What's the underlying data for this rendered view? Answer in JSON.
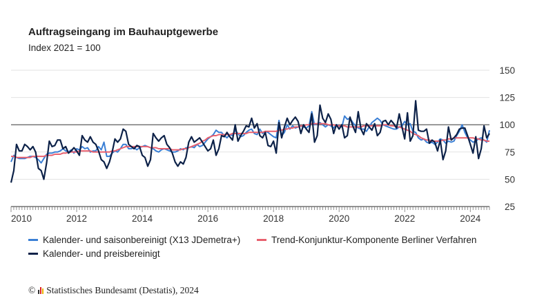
{
  "chart_data": {
    "type": "line",
    "title": "Auftragseingang im Bauhauptgewerbe",
    "subtitle": "Index 2021 = 100",
    "x_start": "2010-01",
    "x_end": "2024-08",
    "x_frequency": "monthly",
    "xtick_labels": [
      "2010",
      "2012",
      "2014",
      "2016",
      "2018",
      "2020",
      "2022",
      "2024"
    ],
    "ytick_labels": [
      "25",
      "50",
      "75",
      "100",
      "125",
      "150"
    ],
    "ylim": [
      25,
      150
    ],
    "reference_line": 100,
    "grid": true,
    "legend_position": "bottom",
    "series": [
      {
        "name": "Kalender- und saisonbereinigt (X13 JDemetra+)",
        "color": "#3a7fd5",
        "values": [
          66,
          72,
          70,
          69,
          69,
          69,
          70,
          71,
          71,
          70,
          68,
          65,
          69,
          73,
          74,
          74,
          75,
          75,
          76,
          78,
          76,
          75,
          77,
          74,
          78,
          77,
          80,
          78,
          79,
          75,
          76,
          76,
          80,
          77,
          84,
          71,
          71,
          74,
          76,
          75,
          78,
          82,
          82,
          78,
          78,
          79,
          77,
          79,
          80,
          81,
          80,
          79,
          78,
          76,
          75,
          77,
          78,
          77,
          76,
          75,
          75,
          76,
          78,
          77,
          79,
          79,
          80,
          79,
          82,
          80,
          81,
          84,
          87,
          89,
          91,
          95,
          93,
          93,
          90,
          88,
          91,
          90,
          95,
          92,
          89,
          90,
          93,
          95,
          96,
          92,
          91,
          96,
          92,
          94,
          93,
          91,
          89,
          88,
          104,
          90,
          93,
          100,
          96,
          99,
          97,
          98,
          99,
          98,
          97,
          99,
          112,
          100,
          101,
          102,
          100,
          98,
          100,
          99,
          97,
          100,
          99,
          98,
          108,
          105,
          106,
          102,
          99,
          97,
          96,
          96,
          94,
          98,
          102,
          104,
          106,
          104,
          100,
          99,
          98,
          97,
          96,
          96,
          98,
          99,
          103,
          100,
          101,
          94,
          93,
          88,
          86,
          87,
          84,
          83,
          84,
          82,
          84,
          87,
          86,
          83,
          85,
          84,
          85,
          90,
          94,
          100,
          93,
          88,
          86,
          84,
          85,
          87,
          88,
          86,
          84,
          95
        ]
      },
      {
        "name": "Trend-Konjunktur-Komponente Berliner Verfahren",
        "color": "#e8606e",
        "values": [
          71,
          71,
          70,
          70,
          70,
          70,
          70,
          70,
          71,
          71,
          71,
          71,
          71,
          72,
          72,
          72,
          73,
          73,
          73,
          74,
          74,
          75,
          75,
          75,
          75,
          76,
          76,
          76,
          76,
          76,
          75,
          75,
          75,
          75,
          75,
          75,
          75,
          76,
          76,
          77,
          78,
          79,
          80,
          80,
          80,
          80,
          80,
          80,
          80,
          80,
          80,
          79,
          79,
          79,
          78,
          78,
          78,
          78,
          78,
          77,
          77,
          77,
          77,
          78,
          78,
          79,
          80,
          81,
          82,
          83,
          85,
          86,
          88,
          89,
          90,
          90,
          91,
          91,
          91,
          91,
          91,
          92,
          92,
          92,
          92,
          92,
          92,
          93,
          93,
          93,
          93,
          93,
          93,
          94,
          94,
          94,
          94,
          94,
          95,
          95,
          96,
          96,
          97,
          97,
          98,
          98,
          99,
          99,
          100,
          100,
          101,
          101,
          101,
          101,
          101,
          101,
          100,
          100,
          100,
          99,
          99,
          99,
          99,
          98,
          98,
          98,
          98,
          98,
          98,
          99,
          99,
          99,
          99,
          99,
          99,
          99,
          100,
          100,
          100,
          99,
          99,
          98,
          98,
          97,
          96,
          95,
          94,
          92,
          91,
          90,
          88,
          87,
          86,
          86,
          85,
          85,
          85,
          85,
          86,
          86,
          87,
          87,
          88,
          88,
          88,
          88,
          88,
          88,
          88,
          88,
          87,
          87,
          86,
          86,
          85,
          85
        ]
      },
      {
        "name": "Kalender- und preisbereinigt",
        "color": "#0c2148",
        "values": [
          47,
          58,
          82,
          76,
          76,
          82,
          80,
          77,
          80,
          75,
          60,
          58,
          50,
          65,
          85,
          80,
          81,
          86,
          86,
          78,
          80,
          74,
          76,
          79,
          76,
          72,
          90,
          86,
          84,
          89,
          84,
          82,
          76,
          68,
          66,
          60,
          66,
          75,
          87,
          84,
          87,
          96,
          94,
          82,
          80,
          78,
          81,
          80,
          72,
          70,
          62,
          68,
          92,
          88,
          85,
          88,
          90,
          82,
          79,
          74,
          66,
          62,
          66,
          64,
          70,
          84,
          89,
          84,
          86,
          88,
          84,
          80,
          76,
          78,
          86,
          72,
          78,
          90,
          89,
          93,
          89,
          86,
          100,
          85,
          90,
          94,
          99,
          98,
          106,
          97,
          101,
          90,
          88,
          93,
          81,
          80,
          85,
          74,
          102,
          88,
          98,
          106,
          100,
          104,
          107,
          103,
          92,
          100,
          96,
          93,
          110,
          84,
          90,
          118,
          106,
          102,
          110,
          105,
          92,
          100,
          96,
          100,
          88,
          90,
          107,
          99,
          93,
          112,
          96,
          91,
          101,
          98,
          95,
          101,
          90,
          93,
          103,
          104,
          100,
          104,
          101,
          97,
          110,
          98,
          87,
          111,
          85,
          90,
          122,
          95,
          94,
          94,
          96,
          83,
          86,
          84,
          76,
          86,
          68,
          76,
          98,
          86,
          88,
          91,
          96,
          97,
          97,
          90,
          82,
          74,
          89,
          69,
          78,
          99,
          88,
          92
        ]
      }
    ]
  },
  "footer": {
    "copyright": "©",
    "source": "Statistisches Bundesamt (Destatis), 2024"
  }
}
